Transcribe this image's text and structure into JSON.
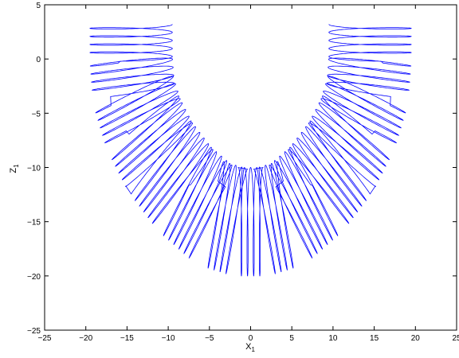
{
  "chart_data": {
    "type": "line",
    "title": "",
    "xlabel": "X",
    "xlabel_sub": "1",
    "ylabel": "Z",
    "ylabel_sub": "1",
    "xlim": [
      -25,
      25
    ],
    "ylim": [
      -25,
      5
    ],
    "xticks": [
      -25,
      -20,
      -15,
      -10,
      -5,
      0,
      5,
      10,
      15,
      20,
      25
    ],
    "yticks": [
      -25,
      -20,
      -15,
      -10,
      -5,
      0,
      5
    ],
    "grid": false,
    "legend": "none",
    "series": [
      {
        "color": "#0000ff",
        "description": "helical coil trajectory projected onto X1-Z1 plane, forming a U-shaped band of ellipses",
        "center_path": [
          {
            "x": -14.5,
            "y": 3.2
          },
          {
            "x": -14.5,
            "y": 0.0
          },
          {
            "x": -14.2,
            "y": -3.0
          },
          {
            "x": -13.0,
            "y": -6.0
          },
          {
            "x": -11.0,
            "y": -9.0
          },
          {
            "x": -8.0,
            "y": -12.0
          },
          {
            "x": -4.5,
            "y": -14.3
          },
          {
            "x": -1.5,
            "y": -15.0
          },
          {
            "x": 1.5,
            "y": -15.0
          },
          {
            "x": 4.5,
            "y": -14.3
          },
          {
            "x": 8.0,
            "y": -12.0
          },
          {
            "x": 11.0,
            "y": -9.0
          },
          {
            "x": 13.0,
            "y": -6.0
          },
          {
            "x": 14.2,
            "y": -3.0
          },
          {
            "x": 14.5,
            "y": 0.0
          },
          {
            "x": 14.5,
            "y": 3.2
          }
        ],
        "loop_radius": 5.0,
        "loop_count": 70
      }
    ]
  }
}
